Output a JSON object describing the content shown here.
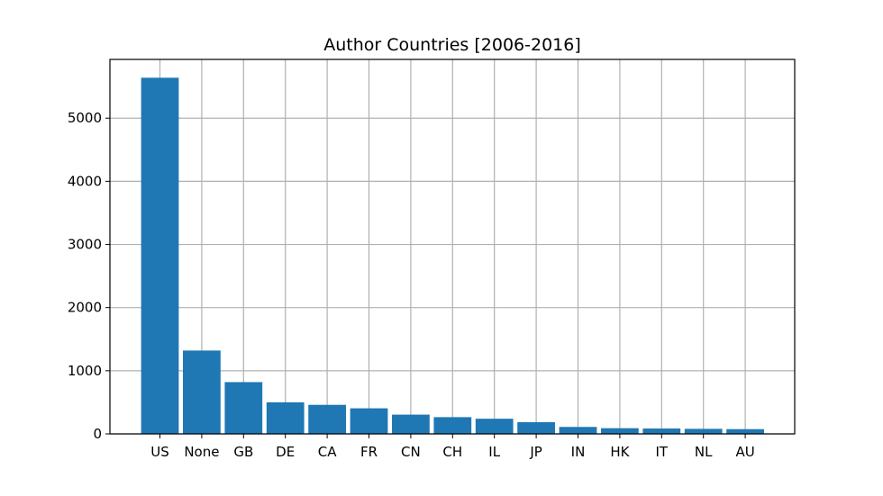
{
  "chart_data": {
    "type": "bar",
    "title": "Author Countries [2006-2016]",
    "xlabel": "",
    "ylabel": "",
    "categories": [
      "US",
      "None",
      "GB",
      "DE",
      "CA",
      "FR",
      "CN",
      "CH",
      "IL",
      "JP",
      "IN",
      "HK",
      "IT",
      "NL",
      "AU"
    ],
    "values": [
      5640,
      1320,
      820,
      500,
      460,
      405,
      305,
      265,
      240,
      185,
      110,
      90,
      85,
      80,
      75
    ],
    "ylim": [
      0,
      5930
    ],
    "yticks": [
      0,
      1000,
      2000,
      3000,
      4000,
      5000
    ],
    "ytick_labels": [
      "0",
      "1000",
      "2000",
      "3000",
      "4000",
      "5000"
    ],
    "grid": true,
    "bar_color": "#1f77b4"
  }
}
